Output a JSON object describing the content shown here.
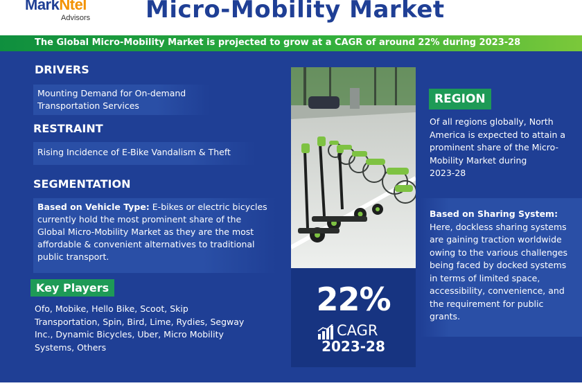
{
  "header": {
    "logo_main_a": "Mark",
    "logo_main_b": "Ntel",
    "logo_sub": "Advisors",
    "title": "Micro-Mobility Market",
    "subtitle": "The Global Micro-Mobility Market is projected to grow at a CAGR of around 22% during  2023-28"
  },
  "drivers": {
    "heading": "DRIVERS",
    "line1": "Mounting Demand for On-demand",
    "line2": "Transportation Services"
  },
  "restraint": {
    "heading": "RESTRAINT",
    "text": "Rising Incidence of E-Bike Vandalism & Theft"
  },
  "segmentation": {
    "heading": "SEGMENTATION",
    "label": "Based on Vehicle Type:",
    "lines": [
      " E-bikes or electric bicycles",
      "currently hold the most prominent share of the",
      "Global Micro-Mobility Market as they are the most",
      "affordable & convenient alternatives to traditional",
      "public transport."
    ]
  },
  "key_players": {
    "heading": "Key Players",
    "lines": [
      "Ofo, Mobike, Hello Bike, Scoot, Skip",
      "Transportation, Spin, Bird, Lime, Rydies, Segway",
      "Inc., Dynamic Bicycles, Uber, Micro Mobility",
      "Systems, Others"
    ]
  },
  "stat": {
    "percent": "22%",
    "label": "CAGR",
    "period": "2023-28",
    "icon": "growth-bars-icon"
  },
  "region": {
    "heading": "REGION",
    "lines": [
      "Of all regions globally, North",
      "America is expected to attain a",
      "prominent share of the Micro-",
      "Mobility Market during",
      "2023-28"
    ]
  },
  "sharing": {
    "label": "Based on Sharing System:",
    "lines": [
      "Here, dockless sharing systems",
      "are gaining traction worldwide",
      "owing to the various challenges",
      "being faced by docked systems",
      "in terms of limited space,",
      "accessibility, convenience, and",
      "the requirement for public",
      "grants."
    ]
  },
  "colors": {
    "background": "#1f3f95",
    "accent_green": "#1e9a56",
    "logo_orange": "#f39200"
  }
}
